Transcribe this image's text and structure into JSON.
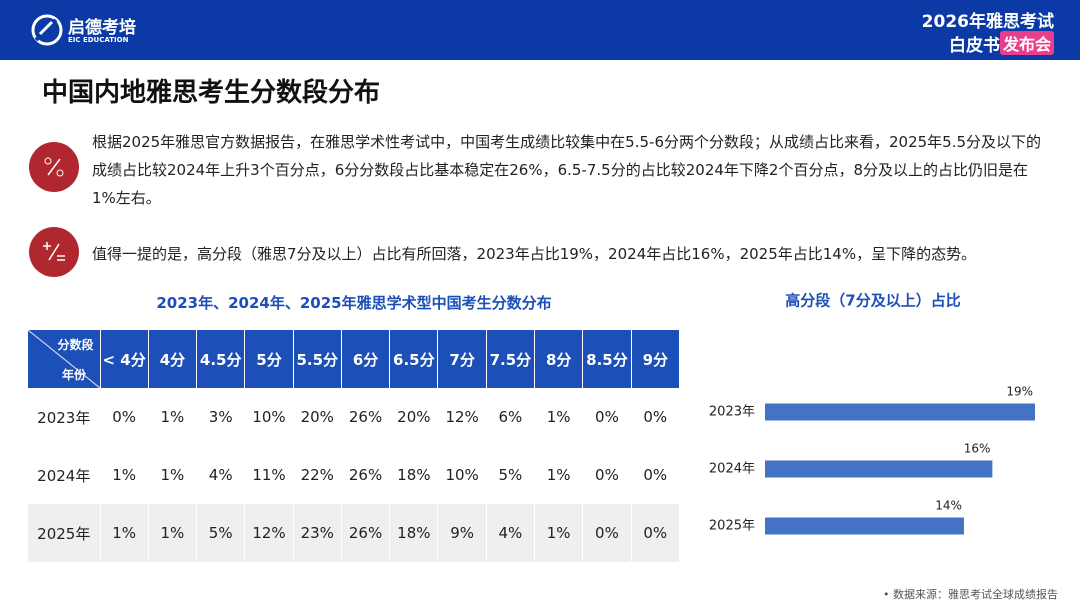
{
  "header": {
    "logo": "启德考培",
    "logo_sub": "EIC EDUCATION",
    "event_line1": "2026年雅思考试",
    "event_line2": "白皮书",
    "event_tag": "发布会"
  },
  "title": "中国内地雅思考生分数段分布",
  "paragraphs": [
    "根据2025年雅思官方数据报告，在雅思学术性考试中，中国考生成绩比较集中在5.5-6分两个分数段；从成绩占比来看，2025年5.5分及以下的成绩占比较2024年上升3个百分点，6分分数段占比基本稳定在26%，6.5-7.5分的占比较2024年下降2个百分点，8分及以上的占比仍旧是在1%左右。",
    "值得一提的是，高分段（雅思7分及以上）占比有所回落，2023年占比19%，2024年占比16%，2025年占比14%，呈下降的态势。"
  ],
  "table": {
    "title": "2023年、2024年、2025年雅思学术型中国考生分数分布",
    "corner_top": "分数段",
    "corner_bottom": "年份",
    "columns": [
      "< 4分",
      "4分",
      "4.5分",
      "5分",
      "5.5分",
      "6分",
      "6.5分",
      "7分",
      "7.5分",
      "8分",
      "8.5分",
      "9分"
    ],
    "rows": [
      [
        "2023年",
        "0%",
        "1%",
        "3%",
        "10%",
        "20%",
        "26%",
        "20%",
        "12%",
        "6%",
        "1%",
        "0%",
        "0%"
      ],
      [
        "2024年",
        "1%",
        "1%",
        "4%",
        "11%",
        "22%",
        "26%",
        "18%",
        "10%",
        "5%",
        "1%",
        "0%",
        "0%"
      ],
      [
        "2025年",
        "1%",
        "1%",
        "5%",
        "12%",
        "23%",
        "26%",
        "18%",
        "9%",
        "4%",
        "1%",
        "0%",
        "0%"
      ]
    ]
  },
  "chart_data": {
    "type": "bar",
    "orientation": "horizontal",
    "title": "高分段（7分及以上）占比",
    "categories": [
      "2023年",
      "2024年",
      "2025年"
    ],
    "values": [
      19,
      16,
      14
    ],
    "value_labels": [
      "19%",
      "16%",
      "14%"
    ],
    "color": "#4472c4"
  },
  "source": "数据来源：雅思考试全球成绩报告"
}
